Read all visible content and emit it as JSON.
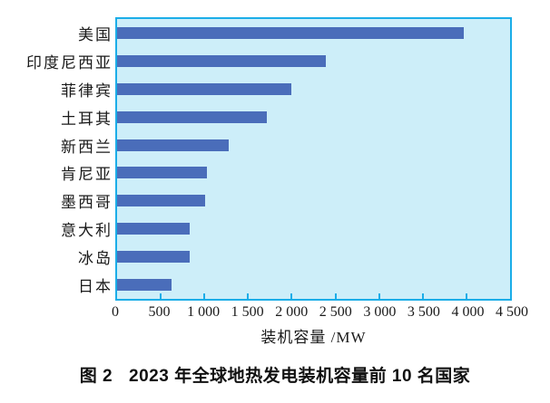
{
  "figure": {
    "caption": {
      "label": "图 2",
      "text": "2023 年全球地热发电装机容量前 10 名国家"
    }
  },
  "chart_data": {
    "type": "bar",
    "orientation": "horizontal",
    "title": "",
    "categories": [
      "美国",
      "印度尼西亚",
      "菲律宾",
      "土耳其",
      "新西兰",
      "肯尼亚",
      "墨西哥",
      "意大利",
      "冰岛",
      "日本"
    ],
    "values": [
      3965,
      2390,
      2000,
      1715,
      1275,
      1030,
      1010,
      830,
      830,
      620
    ],
    "xlabel": "装机容量 /MW",
    "unit": "MW",
    "xlim": [
      0,
      4500
    ],
    "xticks": [
      0,
      500,
      1000,
      1500,
      2000,
      2500,
      3000,
      3500,
      4000,
      4500
    ],
    "xtick_labels": [
      "0",
      "500",
      "1 000",
      "1 500",
      "2 000",
      "2 500",
      "3 000",
      "3 500",
      "4 000",
      "4 500"
    ],
    "grid": false,
    "legend_position": "none",
    "colors": {
      "bar": "#4a6dba",
      "plot_background": "#cdeef9",
      "axis": "#1bade8",
      "text": "#1a1a1a"
    }
  }
}
